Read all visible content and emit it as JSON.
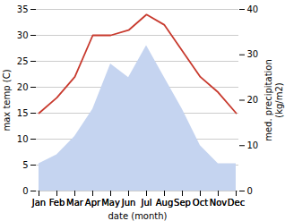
{
  "chart_data": {
    "type": "line",
    "xlabel": "date (month)",
    "ylabel": "max temp (C)",
    "y2label": "med. precipitation\n(kg/m2)",
    "categories": [
      "Jan",
      "Feb",
      "Mar",
      "Apr",
      "May",
      "Jun",
      "Jul",
      "Aug",
      "Sep",
      "Oct",
      "Nov",
      "Dec"
    ],
    "series": [
      {
        "type": "area",
        "axis": "y2",
        "color": "#c5d4f0",
        "values": [
          6,
          8,
          12,
          18,
          28,
          25,
          32,
          25,
          18,
          10,
          6,
          6
        ]
      },
      {
        "type": "line",
        "color": "#c83a2e",
        "values": [
          15,
          18,
          22,
          30,
          30,
          31,
          34,
          32,
          27,
          22,
          19,
          15
        ]
      }
    ],
    "ylim": [
      0,
      35
    ],
    "yticks": [
      0,
      5,
      10,
      15,
      20,
      25,
      30,
      35
    ],
    "y2lim": [
      0,
      40
    ],
    "y2ticks": [
      0,
      10,
      20,
      30,
      40
    ],
    "grid": true
  }
}
